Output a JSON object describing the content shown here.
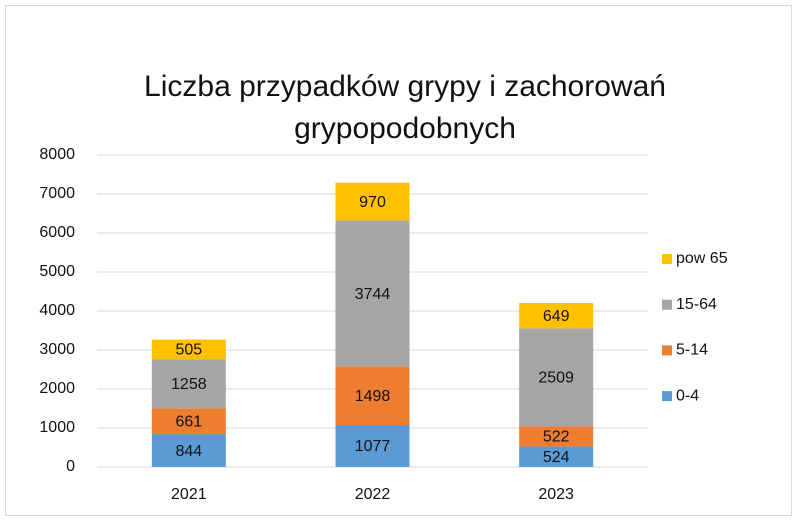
{
  "chart_data": {
    "type": "stacked_bar",
    "title": "Liczba przypadków grypy i zachorowań grypopodobnych",
    "categories": [
      "2021",
      "2022",
      "2023"
    ],
    "series": [
      {
        "name": "0-4",
        "color": "#5b9bd5",
        "values": [
          844,
          1077,
          524
        ]
      },
      {
        "name": "5-14",
        "color": "#ed7d31",
        "values": [
          661,
          1498,
          522
        ]
      },
      {
        "name": "15-64",
        "color": "#a5a5a5",
        "values": [
          1258,
          3744,
          2509
        ]
      },
      {
        "name": "pow 65",
        "color": "#ffc000",
        "values": [
          505,
          970,
          649
        ]
      }
    ],
    "ylim": [
      0,
      8000
    ],
    "yticks": [
      0,
      1000,
      2000,
      3000,
      4000,
      5000,
      6000,
      7000,
      8000
    ],
    "grid": true,
    "legend": "right"
  }
}
